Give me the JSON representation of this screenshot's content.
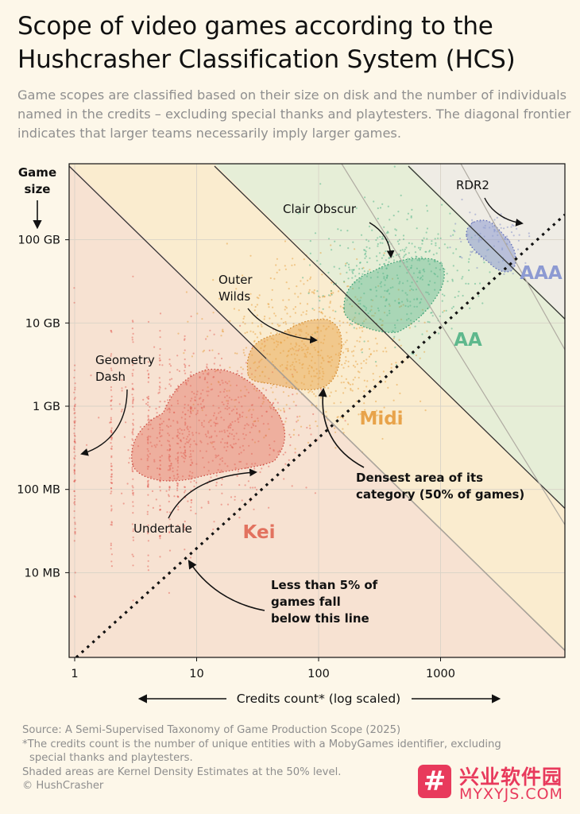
{
  "title": "Scope of video games according to the Hushcrasher Classification System (HCS)",
  "subtitle": "Game scopes are classified based on their size on disk and the number of individuals named in the credits – excluding special thanks and playtesters. The diagonal frontier indicates that larger teams necessarily imply larger games.",
  "chart_data": {
    "type": "scatter",
    "xlabel": "Credits count* (log scaled)",
    "ylabel": "Game size",
    "x_scale": "log",
    "y_scale": "log",
    "xlim": [
      1,
      10000
    ],
    "ylim": [
      "1 MB",
      "1 TB"
    ],
    "x_ticks": [
      {
        "value": 1,
        "label": "1"
      },
      {
        "value": 10,
        "label": "10"
      },
      {
        "value": 100,
        "label": "100"
      },
      {
        "value": 1000,
        "label": "1000"
      }
    ],
    "y_ticks": [
      {
        "value": "10 MB",
        "label": "10 MB"
      },
      {
        "value": "100 MB",
        "label": "100 MB"
      },
      {
        "value": "1 GB",
        "label": "1 GB"
      },
      {
        "value": "10 GB",
        "label": "10 GB"
      },
      {
        "value": "100 GB",
        "label": "100 GB"
      }
    ],
    "grid": true,
    "categories": [
      {
        "name": "Kei",
        "color": "#e2725f",
        "fill": "#f7e2d2",
        "point_color": "#e0534a"
      },
      {
        "name": "Midi",
        "color": "#e8a34a",
        "fill": "#faeccf",
        "point_color": "#e4962d"
      },
      {
        "name": "AA",
        "color": "#5fb88d",
        "fill": "#e6eed7",
        "point_color": "#3aaa7c"
      },
      {
        "name": "AAA",
        "color": "#8d9ad2",
        "fill": "#efece5",
        "point_color": "#7682c4"
      }
    ],
    "annotations": [
      {
        "label": "Geometry Dash"
      },
      {
        "label": "Undertale"
      },
      {
        "label": "Outer Wilds"
      },
      {
        "label": "Clair Obscur"
      },
      {
        "label": "RDR2"
      },
      {
        "label": "Densest area of its category (50% of games)"
      },
      {
        "label": "Less than 5% of games fall below this line"
      }
    ]
  },
  "labels": {
    "game_size_line1": "Game",
    "game_size_line2": "size",
    "ann_geometry_1": "Geometry",
    "ann_geometry_2": "Dash",
    "ann_undertale": "Undertale",
    "ann_outer_1": "Outer",
    "ann_outer_2": "Wilds",
    "ann_clair": "Clair Obscur",
    "ann_rdr2": "RDR2",
    "ann_dense_1": "Densest area of its",
    "ann_dense_2": "category (50% of games)",
    "ann_less_1": "Less than 5% of",
    "ann_less_2": "games fall",
    "ann_less_3": "below this line"
  },
  "footer": {
    "source": "Source: A Semi-Supervised Taxonomy of Game Production Scope (2025)",
    "note1": "*The credits count is the number of unique entities with a MobyGames identifier, excluding",
    "note2": "special thanks and playtesters.",
    "kde": "Shaded areas are Kernel Density Estimates at the 50% level.",
    "copyright": "© HushCrasher"
  },
  "watermark": {
    "glyph": "#",
    "cn": "兴业软件园",
    "en": "MYXYJS.COM"
  }
}
